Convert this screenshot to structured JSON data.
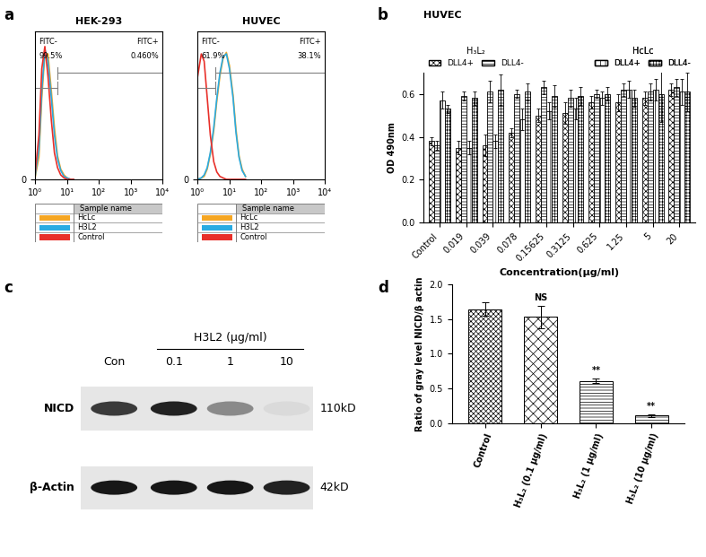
{
  "chart_data": [
    {
      "panel": "a",
      "type": "line",
      "title": "HEK-293",
      "log": "x",
      "xlim": [
        1,
        10000
      ],
      "xticks": [
        {
          "value": 1,
          "label": "10⁰"
        },
        {
          "value": 10,
          "label": "10¹"
        },
        {
          "value": 100,
          "label": "10²"
        },
        {
          "value": 1000,
          "label": "10³"
        },
        {
          "value": 10000,
          "label": "10⁴"
        }
      ],
      "ylim": [
        0,
        100
      ],
      "yticks": [
        0
      ],
      "gate": 5,
      "gate_labels": [
        {
          "name": "FITC-",
          "value": 99.5,
          "label": "99.5%"
        },
        {
          "name": "FITC+",
          "value": 0.46,
          "label": "0.460%"
        }
      ],
      "legend_title": "Sample name",
      "x": [
        1,
        1.3,
        1.6,
        2,
        2.5,
        3.2,
        4,
        5,
        6.3,
        8,
        10,
        13,
        16
      ],
      "series": [
        {
          "name": "HcLc",
          "color": "#f5a623",
          "values": [
            2,
            15,
            55,
            85,
            85,
            60,
            35,
            16,
            7,
            3,
            1,
            0,
            0
          ]
        },
        {
          "name": "H3L2",
          "color": "#29abe2",
          "values": [
            3,
            20,
            60,
            88,
            80,
            55,
            30,
            14,
            6,
            2,
            1,
            0,
            0
          ]
        },
        {
          "name": "Control",
          "color": "#e8302a",
          "values": [
            5,
            30,
            75,
            90,
            70,
            40,
            18,
            8,
            3,
            1,
            0,
            0,
            0
          ]
        }
      ]
    },
    {
      "type": "line",
      "title": "HUVEC",
      "log": "x",
      "xlim": [
        1,
        10000
      ],
      "xticks": [
        {
          "value": 1,
          "label": "10⁰"
        },
        {
          "value": 10,
          "label": "10¹"
        },
        {
          "value": 100,
          "label": "10²"
        },
        {
          "value": 1000,
          "label": "10³"
        },
        {
          "value": 10000,
          "label": "10⁴"
        }
      ],
      "ylim": [
        0,
        100
      ],
      "yticks": [
        0
      ],
      "gate": 3.5,
      "gate_labels": [
        {
          "name": "FITC-",
          "value": 61.9,
          "label": "61.9%"
        },
        {
          "name": "FITC+",
          "value": 38.1,
          "label": "38.1%"
        }
      ],
      "legend_title": "Sample name",
      "x": [
        1,
        1.3,
        1.6,
        2,
        2.5,
        3.2,
        4,
        5,
        6.3,
        8,
        10,
        13,
        16,
        20,
        25,
        32
      ],
      "series": [
        {
          "name": "HcLc",
          "color": "#f5a623",
          "values": [
            0,
            1,
            2,
            7,
            17,
            33,
            53,
            70,
            82,
            86,
            77,
            57,
            34,
            16,
            7,
            2
          ]
        },
        {
          "name": "H3L2",
          "color": "#29abe2",
          "values": [
            0,
            1,
            3,
            8,
            18,
            35,
            55,
            72,
            83,
            85,
            75,
            55,
            32,
            15,
            6,
            2
          ]
        },
        {
          "name": "Control",
          "color": "#e8302a",
          "values": [
            70,
            85,
            80,
            55,
            30,
            12,
            5,
            2,
            1,
            0,
            0,
            0,
            0,
            0,
            0,
            0
          ]
        }
      ]
    },
    {
      "panel": "b",
      "type": "bar",
      "title": "HUVEC",
      "xlabel": "Concentration(μg/ml)",
      "ylabel": "OD 490nm",
      "categories": [
        "Control",
        "0.019",
        "0.039",
        "0.078",
        "0.15625",
        "0.3125",
        "0.625",
        "1.25",
        "5",
        "20"
      ],
      "ylim": [
        0,
        0.7
      ],
      "yticks": [
        0.0,
        0.2,
        0.4,
        0.6
      ],
      "series": [
        {
          "name": "DLL4+",
          "group": "H₃L₂",
          "values": [
            0.38,
            0.35,
            0.36,
            0.42,
            0.5,
            0.51,
            0.56,
            0.56,
            0.58,
            0.62
          ],
          "errors": [
            0.02,
            0.03,
            0.05,
            0.02,
            0.03,
            0.05,
            0.03,
            0.04,
            0.03,
            0.03
          ]
        },
        {
          "name": "DLL4-",
          "group": "H₃L₂",
          "values": [
            0.36,
            0.59,
            0.61,
            0.6,
            0.63,
            0.58,
            0.6,
            0.62,
            0.61,
            0.63
          ],
          "errors": [
            0.02,
            0.02,
            0.05,
            0.02,
            0.03,
            0.04,
            0.02,
            0.03,
            0.04,
            0.04
          ]
        },
        {
          "name": "DLL4+",
          "group": "HcLc",
          "values": [
            0.57,
            0.35,
            0.38,
            0.48,
            0.52,
            0.53,
            0.58,
            0.62,
            0.62,
            0.61
          ],
          "errors": [
            0.04,
            0.03,
            0.03,
            0.05,
            0.04,
            0.05,
            0.03,
            0.04,
            0.05,
            0.06
          ]
        },
        {
          "name": "DLL4-",
          "group": "HcLc",
          "values": [
            0.53,
            0.58,
            0.62,
            0.61,
            0.59,
            0.59,
            0.6,
            0.58,
            0.6,
            0.61
          ],
          "errors": [
            0.02,
            0.03,
            0.07,
            0.04,
            0.05,
            0.04,
            0.03,
            0.04,
            0.13,
            0.09
          ]
        }
      ]
    },
    {
      "panel": "c",
      "type": "blot",
      "group_label": "H3L2 (μg/ml)",
      "lanes": [
        "Con",
        "0.1",
        "1",
        "10"
      ],
      "rows": [
        {
          "name": "NICD",
          "size": "110kD",
          "intensity": [
            0.75,
            0.85,
            0.4,
            0.05
          ]
        },
        {
          "name": "β-Actin",
          "size": "42kD",
          "intensity": [
            0.9,
            0.9,
            0.9,
            0.85
          ]
        }
      ]
    },
    {
      "panel": "d",
      "type": "bar",
      "ylabel": "Ratio of gray level NICD/β actin",
      "categories": [
        "Control",
        "H₃L₂ (0.1 μg/ml)",
        "H₃L₂ (1 μg/ml)",
        "H₃L₂ (10 μg/ml)"
      ],
      "values": [
        1.64,
        1.53,
        0.61,
        0.11
      ],
      "errors": [
        0.1,
        0.16,
        0.03,
        0.02
      ],
      "ylim": [
        0,
        2.0
      ],
      "yticks": [
        0.0,
        0.5,
        1.0,
        1.5,
        2.0
      ],
      "annotations": [
        {
          "category": "H₃L₂ (0.1 μg/ml)",
          "text": "NS"
        },
        {
          "category": "H₃L₂ (1 μg/ml)",
          "text": "**"
        },
        {
          "category": "H₃L₂ (10 μg/ml)",
          "text": "**"
        }
      ]
    }
  ]
}
